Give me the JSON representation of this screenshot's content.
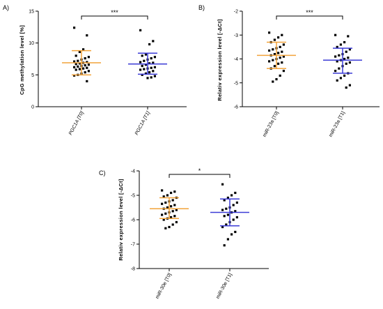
{
  "chart_data": [
    {
      "panel_label": "A)",
      "type": "scatter",
      "ylabel": "CpG methylation level [%]",
      "ylim": [
        0,
        15
      ],
      "yticks": [
        "0",
        "5",
        "10",
        "15"
      ],
      "ytick_values": [
        0,
        5,
        10,
        15
      ],
      "categories": [
        "PGC1A [T0]",
        "PGC1A [T1]"
      ],
      "italic_categories": true,
      "significance": "***",
      "series": [
        {
          "values": [
            12.4,
            11.2,
            9.0,
            8.6,
            8.0,
            7.8,
            7.6,
            7.4,
            7.2,
            7.1,
            7.0,
            6.9,
            6.8,
            6.7,
            6.6,
            6.5,
            6.4,
            6.3,
            6.2,
            6.1,
            6.0,
            5.9,
            5.8,
            5.6,
            5.4,
            5.2,
            5.0,
            4.9,
            4.0
          ],
          "mean": 6.9,
          "upper": 8.8,
          "lower": 5.0,
          "color": "#f2a33a"
        },
        {
          "values": [
            12.0,
            10.3,
            9.8,
            8.2,
            8.0,
            7.8,
            7.6,
            7.4,
            7.2,
            7.0,
            6.9,
            6.8,
            6.6,
            6.4,
            6.2,
            6.1,
            6.0,
            5.9,
            5.8,
            5.6,
            5.4,
            5.2,
            5.0,
            4.8,
            4.6,
            4.5
          ],
          "mean": 6.7,
          "upper": 8.4,
          "lower": 5.1,
          "color": "#3b3bd6"
        }
      ]
    },
    {
      "panel_label": "B)",
      "type": "scatter",
      "ylabel": "Relativ expression level [-ΔCt]",
      "ylim": [
        -6,
        -2
      ],
      "yticks": [
        "-2",
        "-3",
        "-4",
        "-5",
        "-6"
      ],
      "ytick_values": [
        -2,
        -3,
        -4,
        -5,
        -6
      ],
      "categories": [
        "miR-23a [T0]",
        "miR-23a [T1]"
      ],
      "italic_categories": false,
      "significance": "***",
      "series": [
        {
          "values": [
            -2.9,
            -3.0,
            -3.1,
            -3.2,
            -3.3,
            -3.4,
            -3.5,
            -3.55,
            -3.6,
            -3.65,
            -3.7,
            -3.75,
            -3.8,
            -3.85,
            -3.9,
            -3.95,
            -4.0,
            -4.05,
            -4.1,
            -4.15,
            -4.2,
            -4.3,
            -4.4,
            -4.5,
            -4.7,
            -4.85,
            -4.95
          ],
          "mean": -3.85,
          "upper": -3.3,
          "lower": -4.4,
          "color": "#f2a33a"
        },
        {
          "values": [
            -3.0,
            -3.05,
            -3.3,
            -3.4,
            -3.5,
            -3.6,
            -3.7,
            -3.8,
            -3.85,
            -3.9,
            -3.95,
            -4.0,
            -4.05,
            -4.1,
            -4.15,
            -4.2,
            -4.3,
            -4.4,
            -4.5,
            -4.6,
            -4.7,
            -4.8,
            -4.9,
            -5.1,
            -5.2
          ],
          "mean": -4.05,
          "upper": -3.55,
          "lower": -4.6,
          "color": "#3b3bd6"
        }
      ]
    },
    {
      "panel_label": "C)",
      "type": "scatter",
      "ylabel": "Relativ expression level [-ΔCt]",
      "ylim": [
        -8,
        -4
      ],
      "yticks": [
        "-4",
        "-5",
        "-6",
        "-7",
        "-8"
      ],
      "ytick_values": [
        -4,
        -5,
        -6,
        -7,
        -8
      ],
      "categories": [
        "miR-30e [T0]",
        "miR-30e [T1]"
      ],
      "italic_categories": false,
      "significance": "*",
      "series": [
        {
          "values": [
            -4.8,
            -4.85,
            -4.9,
            -5.0,
            -5.05,
            -5.1,
            -5.2,
            -5.25,
            -5.3,
            -5.35,
            -5.4,
            -5.45,
            -5.5,
            -5.55,
            -5.6,
            -5.65,
            -5.7,
            -5.75,
            -5.8,
            -5.85,
            -5.9,
            -5.95,
            -6.0,
            -6.1,
            -6.2,
            -6.3,
            -6.35
          ],
          "mean": -5.55,
          "upper": -5.1,
          "lower": -5.95,
          "color": "#f2a33a"
        },
        {
          "values": [
            -4.55,
            -4.9,
            -5.0,
            -5.1,
            -5.2,
            -5.3,
            -5.4,
            -5.5,
            -5.55,
            -5.6,
            -5.65,
            -5.7,
            -5.8,
            -5.85,
            -5.9,
            -6.0,
            -6.1,
            -6.2,
            -6.3,
            -6.5,
            -6.6,
            -6.8,
            -7.05
          ],
          "mean": -5.7,
          "upper": -5.15,
          "lower": -6.25,
          "color": "#3b3bd6"
        }
      ]
    }
  ]
}
